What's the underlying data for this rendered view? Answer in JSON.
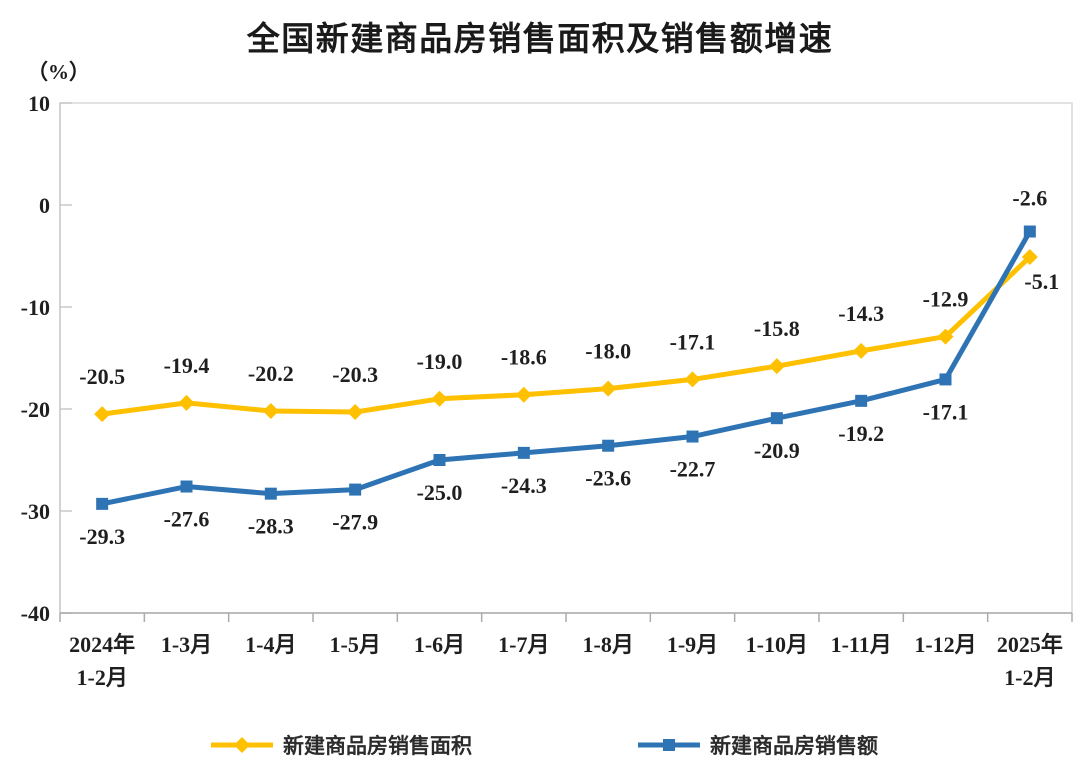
{
  "chart": {
    "title": "全国新建商品房销售面积及销售额增速",
    "unit_label": "（%）"
  },
  "chart_data": {
    "type": "line",
    "title": "全国新建商品房销售面积及销售额增速",
    "ylabel": "（%）",
    "xlabel": "",
    "grid": false,
    "legend_position": "bottom",
    "ylim": [
      -40,
      10
    ],
    "yticks": [
      10,
      0,
      -10,
      -20,
      -30,
      -40
    ],
    "categories": [
      "2024年\n1-2月",
      "1-3月",
      "1-4月",
      "1-5月",
      "1-6月",
      "1-7月",
      "1-8月",
      "1-9月",
      "1-10月",
      "1-11月",
      "1-12月",
      "2025年\n1-2月"
    ],
    "series": [
      {
        "name": "新建商品房销售面积",
        "color": "#FFC000",
        "marker": "diamond",
        "values": [
          -20.5,
          -19.4,
          -20.2,
          -20.3,
          -19.0,
          -18.6,
          -18.0,
          -17.1,
          -15.8,
          -14.3,
          -12.9,
          -5.1
        ]
      },
      {
        "name": "新建商品房销售额",
        "color": "#2E74B5",
        "marker": "square",
        "values": [
          -29.3,
          -27.6,
          -28.3,
          -27.9,
          -25.0,
          -24.3,
          -23.6,
          -22.7,
          -20.9,
          -19.2,
          -17.1,
          -2.6
        ]
      }
    ]
  }
}
